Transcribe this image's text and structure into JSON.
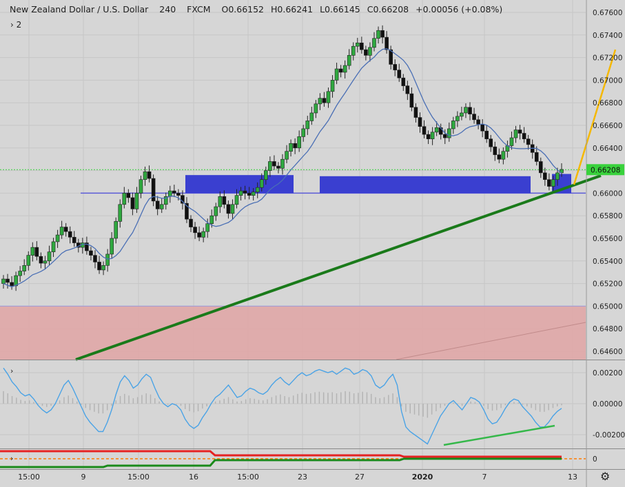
{
  "header": {
    "symbol": "New Zealand Dollar / U.S. Dollar",
    "interval": "240",
    "exchange": "FXCM",
    "open": "O0.66152",
    "high": "H0.66241",
    "low": "L0.66145",
    "close": "C0.66208",
    "change": "+0.00056 (+0.08%)",
    "indicator_toggle": "› 2"
  },
  "colors": {
    "background": "#d6d6d6",
    "grid": "#c6c6c6",
    "candle_up": "#2fa83f",
    "candle_down": "#111111",
    "ma_line": "#4a6fb5",
    "zone": "#3a3fd0",
    "support_band": "#e0a5a5",
    "trendline": "#1a7a1a",
    "projection": "#f5b800",
    "price_tag": "#39d23c",
    "oscillator": "#4aa3e6",
    "osc_histogram": "#b4b4b4",
    "divergence": "#35b84a",
    "strip_red": "#e52222",
    "strip_green": "#1a8a1a",
    "strip_orange": "#ff7a00"
  },
  "chart_data": [
    {
      "type": "line",
      "pane": "price",
      "series": [
        {
          "role": "closes (approx, 4h candles)",
          "values": [
            0.6524,
            0.6521,
            0.6518,
            0.6527,
            0.6531,
            0.6536,
            0.6545,
            0.6552,
            0.6544,
            0.6538,
            0.654,
            0.6548,
            0.6557,
            0.6563,
            0.657,
            0.6566,
            0.6561,
            0.6556,
            0.6552,
            0.6556,
            0.6549,
            0.6545,
            0.6539,
            0.6532,
            0.6536,
            0.6546,
            0.656,
            0.6575,
            0.659,
            0.66,
            0.6596,
            0.6586,
            0.66,
            0.6612,
            0.6619,
            0.6613,
            0.6593,
            0.6586,
            0.659,
            0.6597,
            0.6602,
            0.66,
            0.6598,
            0.6591,
            0.6577,
            0.657,
            0.6565,
            0.6561,
            0.6566,
            0.6573,
            0.658,
            0.6588,
            0.6597,
            0.659,
            0.6582,
            0.659,
            0.6598,
            0.6602,
            0.66,
            0.6598,
            0.6601,
            0.6605,
            0.6612,
            0.662,
            0.6628,
            0.6624,
            0.6622,
            0.663,
            0.6637,
            0.6644,
            0.664,
            0.665,
            0.6657,
            0.6664,
            0.6671,
            0.6679,
            0.6684,
            0.668,
            0.669,
            0.67,
            0.671,
            0.6707,
            0.6713,
            0.6722,
            0.673,
            0.6733,
            0.6727,
            0.6722,
            0.6729,
            0.6737,
            0.6744,
            0.6738,
            0.6727,
            0.6714,
            0.6709,
            0.6702,
            0.6695,
            0.6688,
            0.6676,
            0.6667,
            0.6659,
            0.6652,
            0.6648,
            0.6654,
            0.6658,
            0.6652,
            0.6649,
            0.6657,
            0.6664,
            0.6668,
            0.6671,
            0.6676,
            0.667,
            0.6665,
            0.6661,
            0.6655,
            0.6648,
            0.6641,
            0.6634,
            0.663,
            0.6637,
            0.6642,
            0.6649,
            0.6656,
            0.6653,
            0.6648,
            0.6643,
            0.6636,
            0.6628,
            0.6618,
            0.6612,
            0.6606,
            0.6612,
            0.6618,
            0.6621
          ]
        }
      ],
      "ylim": [
        0.6455,
        0.6772
      ],
      "y_ticks": [
        "0.67600",
        "0.67400",
        "0.67200",
        "0.67000",
        "0.66800",
        "0.66600",
        "0.66400",
        "0.66200",
        "0.66000",
        "0.65800",
        "0.65600",
        "0.65400",
        "0.65200",
        "0.65000",
        "0.64800",
        "0.64600"
      ],
      "x_ticks": [
        "15:00",
        "9",
        "15:00",
        "16",
        "15:00",
        "23",
        "27",
        "2020",
        "7",
        "13"
      ],
      "last_price_label": "0.66208",
      "annotations": [
        "blue supply/demand zones near 0.6600-0.6616",
        "pink support band 0.6450-0.6500",
        "green rising trendline",
        "yellow projection line"
      ]
    },
    {
      "type": "line",
      "pane": "oscillator",
      "ylim": [
        -0.0028,
        0.0028
      ],
      "y_ticks": [
        "0.00200",
        "0.00000",
        "-0.00200"
      ],
      "values": [
        0.0023,
        0.0019,
        0.0014,
        0.0011,
        0.0007,
        0.0005,
        0.0006,
        0.0003,
        -0.0001,
        -0.0004,
        -0.0006,
        -0.0004,
        0.0,
        0.0006,
        0.0012,
        0.0015,
        0.001,
        0.0004,
        -0.0002,
        -0.0008,
        -0.0012,
        -0.0015,
        -0.0018,
        -0.0018,
        -0.0012,
        -0.0004,
        0.0006,
        0.0014,
        0.0018,
        0.0015,
        0.001,
        0.0012,
        0.0016,
        0.0019,
        0.0017,
        0.001,
        0.0004,
        0.0,
        -0.0002,
        0.0,
        -0.0001,
        -0.0004,
        -0.001,
        -0.0014,
        -0.0016,
        -0.0014,
        -0.0009,
        -0.0005,
        0.0,
        0.0004,
        0.0006,
        0.0009,
        0.0012,
        0.0008,
        0.0004,
        0.0005,
        0.0008,
        0.001,
        0.0009,
        0.0007,
        0.0006,
        0.0008,
        0.0012,
        0.0015,
        0.0017,
        0.0014,
        0.0012,
        0.0015,
        0.0018,
        0.002,
        0.0018,
        0.0019,
        0.0021,
        0.0022,
        0.0021,
        0.002,
        0.0021,
        0.0019,
        0.0021,
        0.0023,
        0.0022,
        0.0019,
        0.002,
        0.0022,
        0.0021,
        0.0018,
        0.0012,
        0.001,
        0.0012,
        0.0016,
        0.0019,
        0.0012,
        -0.0005,
        -0.0015,
        -0.0018,
        -0.002,
        -0.0022,
        -0.0024,
        -0.0026,
        -0.002,
        -0.0014,
        -0.0008,
        -0.0004,
        0.0,
        0.0002,
        -0.0001,
        -0.0004,
        0.0,
        0.0004,
        0.0003,
        0.0001,
        -0.0004,
        -0.001,
        -0.0013,
        -0.0012,
        -0.0008,
        -0.0003,
        0.0001,
        0.0003,
        0.0002,
        -0.0002,
        -0.0005,
        -0.0008,
        -0.0012,
        -0.0015,
        -0.0015,
        -0.0012,
        -0.0008,
        -0.0005,
        -0.0003
      ],
      "zero_label": "0"
    }
  ]
}
